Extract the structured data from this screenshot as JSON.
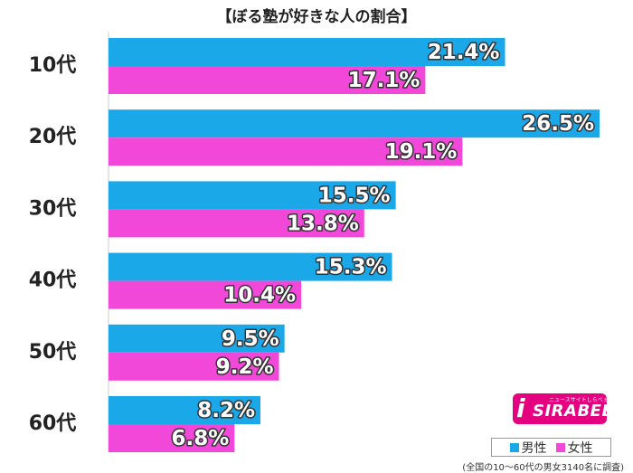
{
  "chart_data": {
    "type": "bar",
    "orientation": "horizontal",
    "title": "【ぼる塾が好きな人の割合】",
    "categories": [
      "10代",
      "20代",
      "30代",
      "40代",
      "50代",
      "60代"
    ],
    "series": [
      {
        "name": "男性",
        "color": "#1aa8e8",
        "values": [
          21.4,
          26.5,
          15.5,
          15.3,
          9.5,
          8.2
        ],
        "labels": [
          "21.4%",
          "26.5%",
          "15.5%",
          "15.3%",
          "9.5%",
          "8.2%"
        ]
      },
      {
        "name": "女性",
        "color": "#f148d9",
        "values": [
          17.1,
          19.1,
          13.8,
          10.4,
          9.2,
          6.8
        ],
        "labels": [
          "17.1%",
          "19.1%",
          "13.8%",
          "10.4%",
          "9.2%",
          "6.8%"
        ]
      }
    ],
    "unit": "%",
    "xlim": [
      0,
      30
    ],
    "grid": false,
    "legend_position": "bottom-right"
  },
  "footnote": "(全国の10〜60代の男女3140名に調査)",
  "logo": {
    "mark": "i",
    "text": "SIRABEE",
    "tagline": "ニュースサイトしらべぇ"
  }
}
